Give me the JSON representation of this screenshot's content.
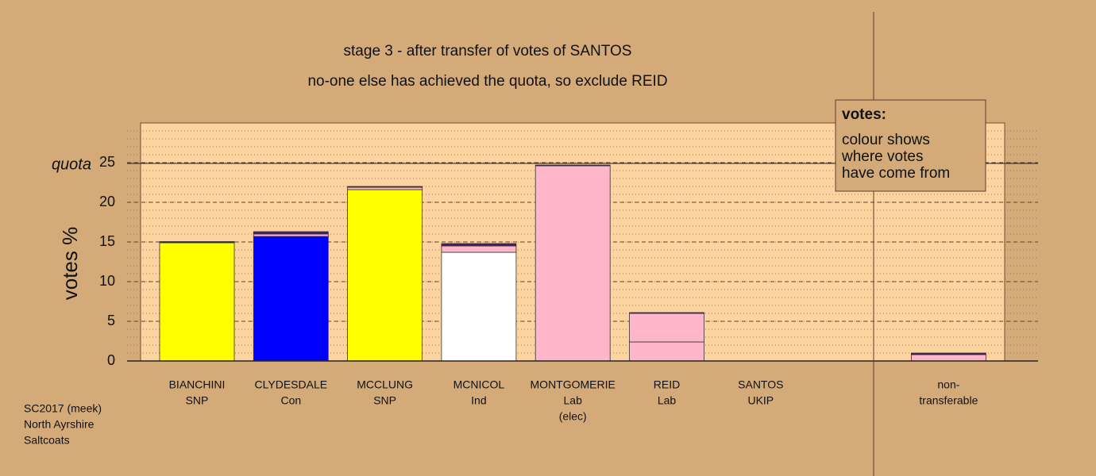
{
  "chart_data": {
    "type": "stacked_bar",
    "title": "stage 3 - after transfer of votes of SANTOS",
    "subtitle": "no-one else has achieved the quota, so exclude REID",
    "y_label": "votes %",
    "categories": [
      [
        "BIANCHINI",
        "SNP"
      ],
      [
        "CLYDESDALE",
        "Con"
      ],
      [
        "MCCLUNG",
        "SNP"
      ],
      [
        "MCNICOL",
        "Ind"
      ],
      [
        "MONTGOMERIE",
        "Lab",
        "(elec)"
      ],
      [
        "REID",
        "Lab"
      ],
      [
        "SANTOS",
        "UKIP"
      ],
      [
        "non-",
        "transferable"
      ]
    ],
    "series": [
      {
        "colors": [
          "#ffff00",
          "#0000ff",
          "#ffff00",
          "#ffffff",
          "#ffb6c8",
          "#ffb6c8",
          "#ffb6c8",
          "#ffb6c8"
        ],
        "values": [
          14.9,
          15.7,
          21.6,
          13.7,
          24.6,
          2.4,
          0,
          0
        ]
      },
      {
        "color": "#ffb6c8",
        "values": [
          0,
          0.3,
          0.3,
          0.8,
          0,
          3.6,
          0,
          0.8
        ]
      },
      {
        "color": "#4b1a6e",
        "values": [
          0.15,
          0.3,
          0.1,
          0.3,
          0.1,
          0.1,
          0,
          0.2
        ]
      }
    ],
    "ylim": [
      0,
      30
    ],
    "yticks": [
      0,
      5,
      10,
      15,
      20,
      25
    ],
    "grid": true,
    "minor_grid_step": 1,
    "quota": 24.9,
    "quota_label": "quota",
    "legend": {
      "title": "votes:",
      "lines": [
        "colour shows",
        "where votes",
        "have come from"
      ]
    },
    "footnote": [
      "SC2017 (meek)",
      "North Ayrshire",
      "Saltcoats"
    ]
  }
}
